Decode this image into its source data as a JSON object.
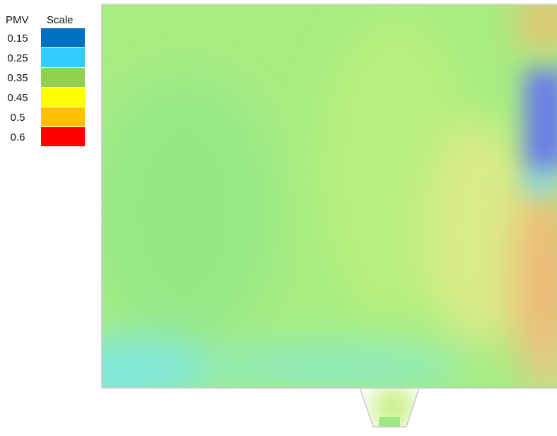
{
  "legend": {
    "header_pmv": "PMV",
    "header_scale": "Scale",
    "items": [
      {
        "value": "0.15",
        "color": "#0070c0"
      },
      {
        "value": "0.25",
        "color": "#33ccff"
      },
      {
        "value": "0.35",
        "color": "#92d050"
      },
      {
        "value": "0.45",
        "color": "#ffff00"
      },
      {
        "value": "0.5",
        "color": "#ffc000"
      },
      {
        "value": "0.6",
        "color": "#ff0000"
      }
    ]
  },
  "map": {
    "base_color": "#a6ed82",
    "outline_color": "#c8c8c8"
  }
}
